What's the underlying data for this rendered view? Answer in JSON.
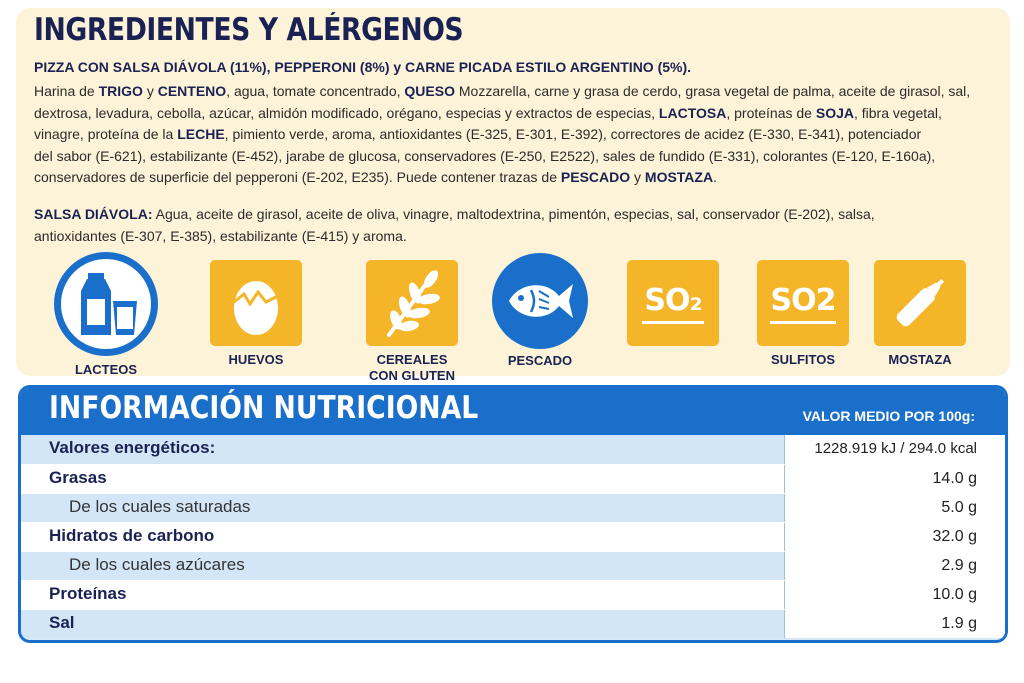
{
  "ingredients_section": {
    "title": "INGREDIENTES Y ALÉRGENOS",
    "product_line": "PIZZA CON SALSA DIÁVOLA (11%), PEPPERONI (8%) y CARNE PICADA ESTILO ARGENTINO (5%).",
    "text": {
      "t1": "Harina de ",
      "b1": "TRIGO",
      "t2": " y ",
      "b2": "CENTENO",
      "t3": ", agua, tomate concentrado, ",
      "b3": "QUESO",
      "t4": " Mozzarella, carne y grasa de cerdo, grasa vegetal de palma, aceite de girasol, sal,",
      "t5": "dextrosa, levadura, cebolla, azúcar, almidón modificado, orégano, especias y extractos de especias, ",
      "b4": "LACTOSA",
      "t6": ", proteínas de ",
      "b5": "SOJA",
      "t7": ", fibra vegetal,",
      "t8": "vinagre, proteína de la ",
      "b6": "LECHE",
      "t9": ", pimiento verde, aroma, antioxidantes (E-325, E-301, E-392), correctores de acidez (E-330, E-341), potenciador",
      "t10": "del sabor (E-621), estabilizante (E-452), jarabe de glucosa, conservadores (E-250, E2522), sales de fundido (E-331), colorantes (E-120, E-160a),",
      "t11": "conservadores de superficie del pepperoni (E-202, E235). Puede contener trazas de ",
      "b7": "PESCADO",
      "t12": " y ",
      "b8": "MOSTAZA",
      "t13": "."
    },
    "salsa": {
      "label": "SALSA DIÁVOLA:",
      "line1": " Agua, aceite de girasol, aceite de oliva, vinagre, maltodextrina, pimentón, especias, sal, conservador (E-202), salsa,",
      "line2": "antioxidantes (E-307, E-385), estabilizante (E-415) y aroma."
    }
  },
  "allergens": [
    {
      "label": "LACTEOS",
      "icon": "milk-icon"
    },
    {
      "label": "HUEVOS",
      "icon": "egg-icon"
    },
    {
      "label": "CEREALES CON GLUTEN",
      "line1": "CEREALES",
      "line2": "CON GLUTEN",
      "icon": "wheat-icon"
    },
    {
      "label": "PESCADO",
      "icon": "fish-icon"
    },
    {
      "label": "",
      "icon": "so2-icon",
      "glyph": "SO₂"
    },
    {
      "label": "SULFITOS",
      "icon": "so2-icon",
      "glyph": "SO2"
    },
    {
      "label": "MOSTAZA",
      "icon": "mustard-bottle-icon"
    }
  ],
  "nutrition": {
    "title": "INFORMACIÓN NUTRICIONAL",
    "column_header": "VALOR MEDIO POR 100g:",
    "rows": [
      {
        "label": "Valores energéticos:",
        "value": "1228.919 kJ / 294.0 kcal"
      },
      {
        "label": "Grasas",
        "value": "14.0 g"
      },
      {
        "label": "De los cuales saturadas",
        "value": "5.0 g"
      },
      {
        "label": "Hidratos de carbono",
        "value": "32.0 g"
      },
      {
        "label": "De los cuales azúcares",
        "value": "2.9 g"
      },
      {
        "label": "Proteínas",
        "value": "10.0 g"
      },
      {
        "label": "Sal",
        "value": "1.9 g"
      }
    ]
  },
  "colors": {
    "navy": "#1a2253",
    "blue": "#1a6fcb",
    "amber": "#f5b528",
    "cream": "#fdf3d8"
  }
}
